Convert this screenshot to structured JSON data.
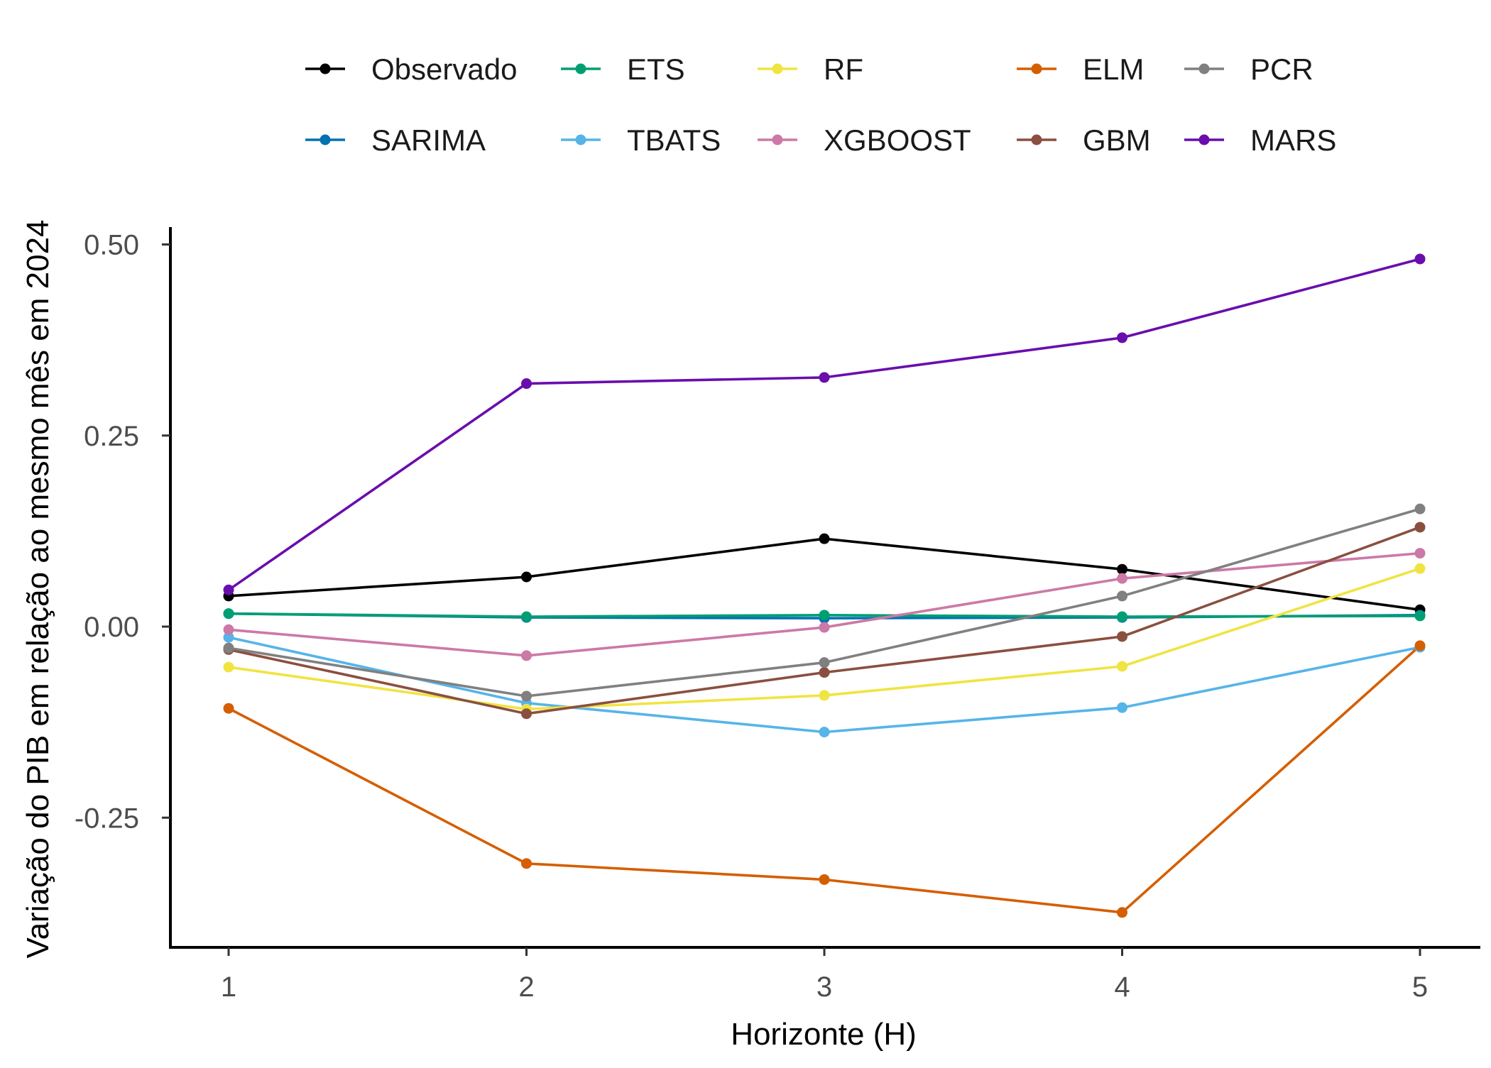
{
  "chart_data": {
    "type": "line",
    "xlabel": "Horizonte (H)",
    "ylabel": "Variação do PIB em relação ao mesmo mês em 2024",
    "x": [
      1,
      2,
      3,
      4,
      5
    ],
    "x_tick_labels": [
      "1",
      "2",
      "3",
      "4",
      "5"
    ],
    "y_ticks": [
      -0.25,
      0.0,
      0.25,
      0.5
    ],
    "y_tick_labels": [
      "-0.25",
      "0.00",
      "0.25",
      "0.50"
    ],
    "xlim": [
      0.8,
      5.2
    ],
    "ylim": [
      -0.42,
      0.52
    ],
    "grid": false,
    "legend_position": "top",
    "series": [
      {
        "name": "Observado",
        "color": "#000000",
        "values": [
          0.04,
          0.065,
          0.115,
          0.075,
          0.022
        ]
      },
      {
        "name": "SARIMA",
        "color": "#0072B2",
        "values": [
          0.017,
          0.012,
          0.011,
          0.012,
          0.015
        ]
      },
      {
        "name": "ETS",
        "color": "#009E73",
        "values": [
          0.017,
          0.013,
          0.015,
          0.013,
          0.014
        ]
      },
      {
        "name": "TBATS",
        "color": "#56B4E9",
        "values": [
          -0.014,
          -0.1,
          -0.138,
          -0.106,
          -0.027
        ]
      },
      {
        "name": "RF",
        "color": "#F0E442",
        "values": [
          -0.053,
          -0.108,
          -0.09,
          -0.052,
          0.076
        ]
      },
      {
        "name": "XGBOOST",
        "color": "#CC79A7",
        "values": [
          -0.004,
          -0.038,
          -0.001,
          0.063,
          0.096
        ]
      },
      {
        "name": "ELM",
        "color": "#D55E00",
        "values": [
          -0.107,
          -0.31,
          -0.331,
          -0.374,
          -0.025
        ]
      },
      {
        "name": "GBM",
        "color": "#8B4F3F",
        "values": [
          -0.03,
          -0.114,
          -0.06,
          -0.013,
          0.13
        ]
      },
      {
        "name": "PCR",
        "color": "#808080",
        "values": [
          -0.028,
          -0.091,
          -0.047,
          0.04,
          0.154
        ]
      },
      {
        "name": "MARS",
        "color": "#6A0DAD",
        "values": [
          0.048,
          0.318,
          0.326,
          0.378,
          0.481
        ]
      }
    ]
  }
}
